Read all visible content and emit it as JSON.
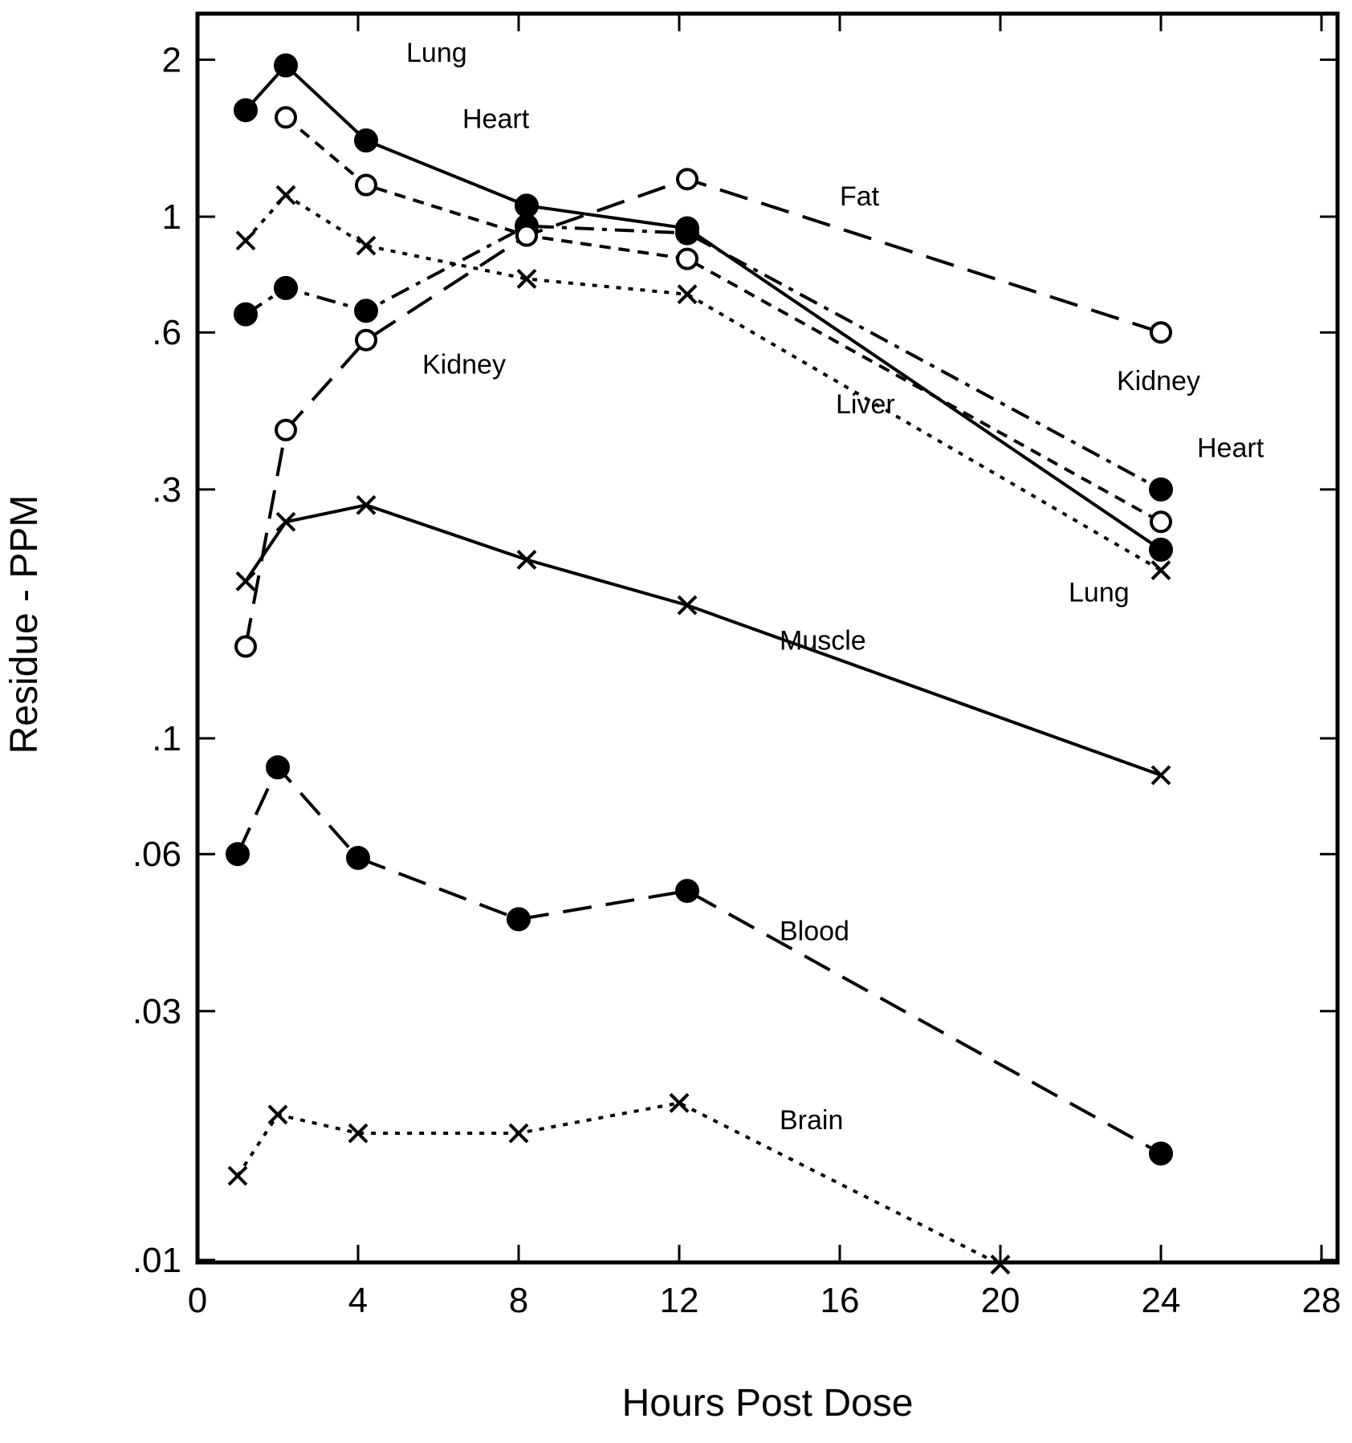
{
  "chart_data": {
    "type": "line",
    "xlabel": "Hours Post Dose",
    "ylabel": "Residue - PPM",
    "xlim": [
      0,
      28
    ],
    "ylim": [
      0.01,
      2.5
    ],
    "y_scale": "log",
    "grid": false,
    "x_ticks": [
      0,
      4,
      8,
      12,
      16,
      20,
      24,
      28
    ],
    "x_tick_labels": [
      "0",
      "4",
      "8",
      "12",
      "16",
      "20",
      "24",
      "28"
    ],
    "y_ticks": [
      0.01,
      0.03,
      0.06,
      0.1,
      0.3,
      0.6,
      1,
      2
    ],
    "y_tick_labels": [
      ".01",
      ".03",
      ".06",
      ".1",
      ".3",
      ".6",
      "1",
      "2"
    ],
    "series": [
      {
        "name": "Lung",
        "marker": "filled-circle",
        "dash": "solid",
        "x": [
          1.2,
          2.2,
          4.2,
          8.2,
          12.2,
          24
        ],
        "y": [
          1.6,
          1.95,
          1.4,
          1.05,
          0.95,
          0.23
        ]
      },
      {
        "name": "Heart",
        "marker": "open-circle",
        "dash": "short-dash",
        "x": [
          2.2,
          4.2,
          8.2,
          12.2,
          24
        ],
        "y": [
          1.55,
          1.15,
          0.92,
          0.83,
          0.26
        ]
      },
      {
        "name": "Liver",
        "marker": "x",
        "dash": "dotted",
        "x": [
          1.2,
          2.2,
          4.2,
          8.2,
          12.2,
          24
        ],
        "y": [
          0.9,
          1.1,
          0.88,
          0.76,
          0.71,
          0.21
        ]
      },
      {
        "name": "Kidney",
        "marker": "filled-circle",
        "dash": "dash-dot",
        "x": [
          1.2,
          2.2,
          4.2,
          8.2,
          12.2,
          24
        ],
        "y": [
          0.65,
          0.73,
          0.66,
          0.96,
          0.93,
          0.3
        ]
      },
      {
        "name": "Fat",
        "marker": "open-circle",
        "dash": "long-dash",
        "x": [
          1.2,
          2.2,
          4.2,
          8.2,
          12.2,
          24
        ],
        "y": [
          0.15,
          0.39,
          0.58,
          0.92,
          1.18,
          0.6
        ]
      },
      {
        "name": "Muscle",
        "marker": "x",
        "dash": "solid",
        "x": [
          1.2,
          2.2,
          4.2,
          8.2,
          12.2,
          24
        ],
        "y": [
          0.2,
          0.26,
          0.28,
          0.22,
          0.18,
          0.085
        ]
      },
      {
        "name": "Blood",
        "marker": "filled-circle",
        "dash": "long-dash",
        "x": [
          1,
          2,
          4,
          8,
          12.2,
          24
        ],
        "y": [
          0.06,
          0.088,
          0.059,
          0.045,
          0.051,
          0.016
        ]
      },
      {
        "name": "Brain",
        "marker": "x",
        "dash": "dotted",
        "x": [
          1,
          2,
          4,
          8,
          12,
          20
        ],
        "y": [
          0.0145,
          0.019,
          0.0175,
          0.0175,
          0.02,
          0.0098
        ]
      }
    ],
    "labels": [
      {
        "text": "Lung",
        "series": "Lung",
        "x": 5.2,
        "y": 1.98
      },
      {
        "text": "Heart",
        "series": "Heart",
        "x": 6.6,
        "y": 1.48
      },
      {
        "text": "Fat",
        "series": "Fat",
        "x": 16.0,
        "y": 1.05
      },
      {
        "text": "Kidney",
        "series": "Kidney",
        "x": 5.6,
        "y": 0.5
      },
      {
        "text": "Liver",
        "series": "Liver",
        "x": 15.9,
        "y": 0.42
      },
      {
        "text": "Kidney",
        "series": "Kidney",
        "x": 22.9,
        "y": 0.465
      },
      {
        "text": "Heart",
        "series": "Heart",
        "x": 24.9,
        "y": 0.346
      },
      {
        "text": "Lung",
        "series": "Lung",
        "x": 21.7,
        "y": 0.183
      },
      {
        "text": "Muscle",
        "series": "Muscle",
        "x": 14.5,
        "y": 0.148
      },
      {
        "text": "Blood",
        "series": "Blood",
        "x": 14.5,
        "y": 0.041
      },
      {
        "text": "Brain",
        "series": "Brain",
        "x": 14.5,
        "y": 0.0178
      }
    ]
  }
}
